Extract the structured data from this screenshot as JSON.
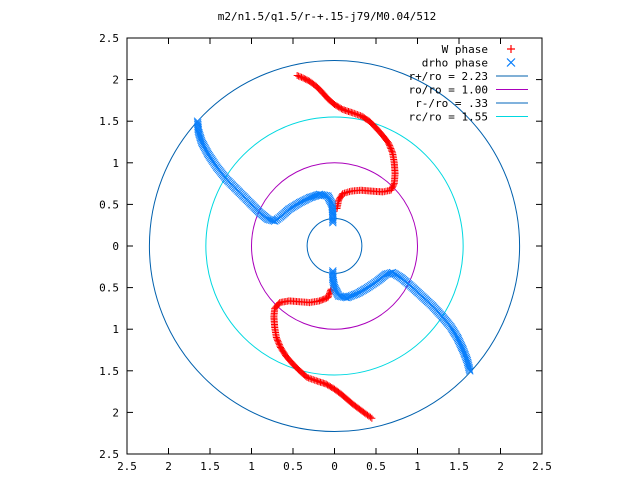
{
  "chart_data": {
    "type": "scatter",
    "title": "m2/n1.5/q1.5/r-+.15-j79/M0.04/512",
    "xlabel": "",
    "ylabel": "",
    "xlim": [
      -2.5,
      2.5
    ],
    "ylim": [
      -2.5,
      2.5
    ],
    "x_ticks": [
      -2.5,
      -2,
      -1.5,
      -1,
      -0.5,
      0,
      0.5,
      1,
      1.5,
      2,
      2.5
    ],
    "y_ticks": [
      -2.5,
      -2,
      -1.5,
      -1,
      -0.5,
      0,
      0.5,
      1,
      1.5,
      2,
      2.5
    ],
    "x_tick_labels": [
      "2.5",
      "2",
      "1.5",
      "1",
      "0.5",
      "0",
      "0.5",
      "1",
      "1.5",
      "2",
      "2.5"
    ],
    "y_tick_labels": [
      "2.5",
      "2",
      "1.5",
      "1",
      "0.5",
      "0",
      "0.5",
      "1",
      "1.5",
      "2",
      "2.5"
    ],
    "grid": false,
    "legend_position": "top-right",
    "series": [
      {
        "name": "W phase",
        "marker": "+",
        "color": "#ff0000",
        "points": [
          [
            -0.45,
            2.05
          ],
          [
            -0.38,
            2.02
          ],
          [
            -0.3,
            1.98
          ],
          [
            -0.22,
            1.92
          ],
          [
            -0.15,
            1.85
          ],
          [
            -0.08,
            1.77
          ],
          [
            0.0,
            1.7
          ],
          [
            0.1,
            1.64
          ],
          [
            0.22,
            1.6
          ],
          [
            0.33,
            1.56
          ],
          [
            0.42,
            1.5
          ],
          [
            0.5,
            1.42
          ],
          [
            0.58,
            1.33
          ],
          [
            0.65,
            1.24
          ],
          [
            0.7,
            1.12
          ],
          [
            0.72,
            1.0
          ],
          [
            0.73,
            0.87
          ],
          [
            0.72,
            0.75
          ],
          [
            0.68,
            0.67
          ],
          [
            0.58,
            0.65
          ],
          [
            0.45,
            0.66
          ],
          [
            0.32,
            0.67
          ],
          [
            0.2,
            0.66
          ],
          [
            0.1,
            0.63
          ],
          [
            0.05,
            0.55
          ],
          [
            0.03,
            0.45
          ],
          [
            0.45,
            -2.07
          ],
          [
            0.38,
            -2.02
          ],
          [
            0.3,
            -1.96
          ],
          [
            0.22,
            -1.9
          ],
          [
            0.15,
            -1.84
          ],
          [
            0.08,
            -1.78
          ],
          [
            0.0,
            -1.72
          ],
          [
            -0.1,
            -1.66
          ],
          [
            -0.22,
            -1.62
          ],
          [
            -0.33,
            -1.58
          ],
          [
            -0.42,
            -1.5
          ],
          [
            -0.5,
            -1.42
          ],
          [
            -0.58,
            -1.33
          ],
          [
            -0.65,
            -1.22
          ],
          [
            -0.7,
            -1.1
          ],
          [
            -0.72,
            -0.98
          ],
          [
            -0.73,
            -0.85
          ],
          [
            -0.72,
            -0.75
          ],
          [
            -0.66,
            -0.68
          ],
          [
            -0.55,
            -0.66
          ],
          [
            -0.42,
            -0.67
          ],
          [
            -0.3,
            -0.68
          ],
          [
            -0.18,
            -0.66
          ],
          [
            -0.08,
            -0.62
          ],
          [
            -0.04,
            -0.52
          ]
        ]
      },
      {
        "name": "drho phase",
        "marker": "x",
        "color": "#0a7ffb",
        "points": [
          [
            -1.65,
            1.5
          ],
          [
            -1.64,
            1.38
          ],
          [
            -1.6,
            1.25
          ],
          [
            -1.52,
            1.1
          ],
          [
            -1.42,
            0.95
          ],
          [
            -1.3,
            0.8
          ],
          [
            -1.16,
            0.66
          ],
          [
            -1.02,
            0.52
          ],
          [
            -0.9,
            0.4
          ],
          [
            -0.8,
            0.32
          ],
          [
            -0.72,
            0.3
          ],
          [
            -0.65,
            0.35
          ],
          [
            -0.55,
            0.44
          ],
          [
            -0.42,
            0.52
          ],
          [
            -0.3,
            0.58
          ],
          [
            -0.18,
            0.62
          ],
          [
            -0.08,
            0.6
          ],
          [
            -0.03,
            0.5
          ],
          [
            -0.02,
            0.38
          ],
          [
            -0.02,
            0.28
          ],
          [
            1.63,
            -1.5
          ],
          [
            1.6,
            -1.38
          ],
          [
            1.55,
            -1.25
          ],
          [
            1.48,
            -1.1
          ],
          [
            1.4,
            -0.97
          ],
          [
            1.3,
            -0.85
          ],
          [
            1.18,
            -0.72
          ],
          [
            1.05,
            -0.6
          ],
          [
            0.92,
            -0.48
          ],
          [
            0.8,
            -0.38
          ],
          [
            0.7,
            -0.32
          ],
          [
            0.62,
            -0.34
          ],
          [
            0.52,
            -0.42
          ],
          [
            0.4,
            -0.5
          ],
          [
            0.28,
            -0.57
          ],
          [
            0.15,
            -0.62
          ],
          [
            0.05,
            -0.6
          ],
          [
            0.0,
            -0.5
          ],
          [
            -0.02,
            -0.4
          ],
          [
            -0.02,
            -0.3
          ]
        ]
      }
    ],
    "circles": [
      {
        "label": "r+/ro = 2.23",
        "radius": 2.23,
        "color": "#0060ad"
      },
      {
        "label": "ro/ro = 1.00",
        "radius": 1.0,
        "color": "#aa00bb"
      },
      {
        "label": "r-/ro = .33",
        "radius": 0.33,
        "color": "#0066bb"
      },
      {
        "label": "rc/ro = 1.55",
        "radius": 1.55,
        "color": "#00d8e0"
      }
    ]
  }
}
